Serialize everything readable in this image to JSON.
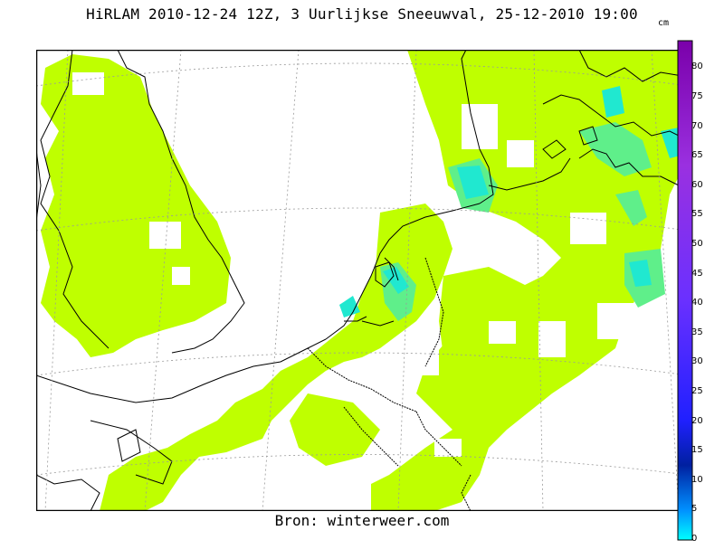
{
  "title": "HiRLAM 2010-12-24 12Z, 3 Uurlijkse Sneeuwval, 25-12-2010 19:00",
  "source": "Bron: winterweer.com",
  "legend": {
    "unit": "cm",
    "ticks": [
      "0",
      "5",
      "10",
      "15",
      "20",
      "25",
      "30",
      "35",
      "40",
      "45",
      "50",
      "55",
      "60",
      "65",
      "70",
      "75",
      "80"
    ],
    "gradient_stops": [
      {
        "v": 0,
        "color": "#00ffff"
      },
      {
        "v": 5,
        "color": "#0080ff"
      },
      {
        "v": 15,
        "color": "#0020a0"
      },
      {
        "v": 22,
        "color": "#1010ff"
      },
      {
        "v": 40,
        "color": "#6a30ff"
      },
      {
        "v": 60,
        "color": "#9a30e0"
      },
      {
        "v": 85,
        "color": "#7a00aa"
      }
    ]
  },
  "colors": {
    "snow_light": "#bfff00",
    "snow_medium": "#5fef8a",
    "snow_heavy": "#20e8d0",
    "coast": "#000000",
    "grid": "#9a9a9a"
  },
  "map": {
    "region": "North-West Europe",
    "field": "3-hour snowfall (cm)"
  }
}
